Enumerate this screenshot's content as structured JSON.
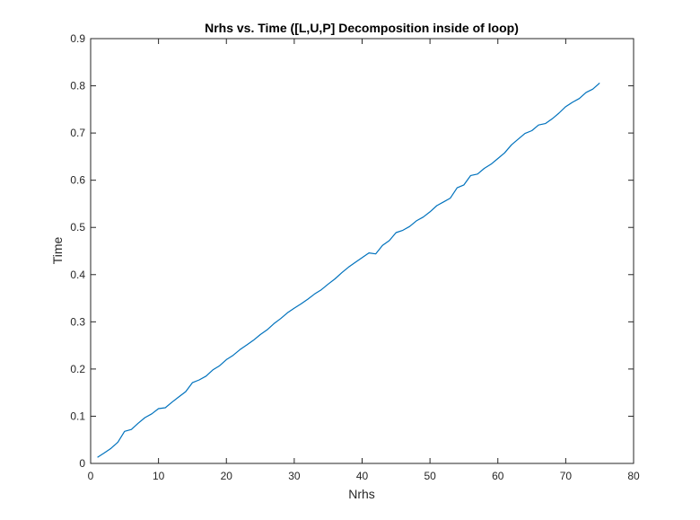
{
  "chart_data": {
    "type": "line",
    "title": "Nrhs vs. Time ([L,U,P] Decomposition inside of loop)",
    "xlabel": "Nrhs",
    "ylabel": "Time",
    "xlim": [
      0,
      80
    ],
    "ylim": [
      0,
      0.9
    ],
    "xticks": [
      0,
      10,
      20,
      30,
      40,
      50,
      60,
      70,
      80
    ],
    "xtick_labels": [
      "0",
      "10",
      "20",
      "30",
      "40",
      "50",
      "60",
      "70",
      "80"
    ],
    "yticks": [
      0,
      0.1,
      0.2,
      0.3,
      0.4,
      0.5,
      0.6,
      0.7,
      0.8,
      0.9
    ],
    "ytick_labels": [
      "0",
      "0.1",
      "0.2",
      "0.3",
      "0.4",
      "0.5",
      "0.6",
      "0.7",
      "0.8",
      "0.9"
    ],
    "grid": false,
    "line_color": "#0072BD",
    "series": [
      {
        "x": [
          1,
          2,
          3,
          4,
          5,
          6,
          7,
          8,
          9,
          10,
          11,
          12,
          13,
          14,
          15,
          16,
          17,
          18,
          19,
          20,
          21,
          22,
          23,
          24,
          25,
          26,
          27,
          28,
          29,
          30,
          31,
          32,
          33,
          34,
          35,
          36,
          37,
          38,
          39,
          40,
          41,
          42,
          43,
          44,
          45,
          46,
          47,
          48,
          49,
          50,
          51,
          52,
          53,
          54,
          55,
          56,
          57,
          58,
          59,
          60,
          61,
          62,
          63,
          64,
          65,
          66,
          67,
          68,
          69,
          70,
          71,
          72,
          73,
          74,
          75
        ],
        "y": [
          0.013,
          0.022,
          0.032,
          0.045,
          0.068,
          0.072,
          0.085,
          0.097,
          0.105,
          0.116,
          0.118,
          0.13,
          0.141,
          0.152,
          0.171,
          0.177,
          0.185,
          0.198,
          0.207,
          0.22,
          0.229,
          0.241,
          0.251,
          0.261,
          0.273,
          0.283,
          0.296,
          0.307,
          0.319,
          0.329,
          0.338,
          0.348,
          0.359,
          0.368,
          0.38,
          0.391,
          0.404,
          0.416,
          0.426,
          0.436,
          0.446,
          0.444,
          0.462,
          0.472,
          0.489,
          0.494,
          0.502,
          0.514,
          0.522,
          0.533,
          0.546,
          0.554,
          0.562,
          0.584,
          0.59,
          0.61,
          0.613,
          0.625,
          0.634,
          0.646,
          0.658,
          0.675,
          0.687,
          0.699,
          0.705,
          0.717,
          0.72,
          0.73,
          0.742,
          0.756,
          0.765,
          0.773,
          0.786,
          0.793,
          0.806
        ]
      }
    ]
  }
}
